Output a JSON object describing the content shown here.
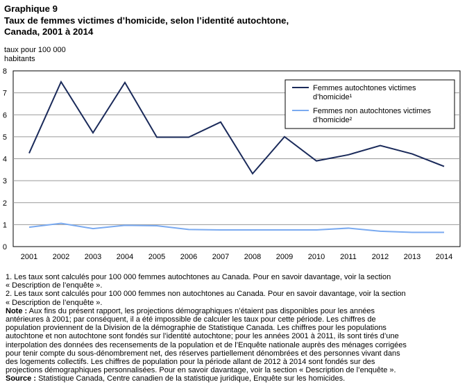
{
  "title": {
    "line1": "Graphique  9",
    "line2": "Taux de femmes victimes d’homicide, selon l’identité  autochtone,",
    "line3": "Canada, 2001 à 2014"
  },
  "y_unit": {
    "line1": "taux pour 100 000",
    "line2": "habitants"
  },
  "chart_data": {
    "type": "line",
    "title": "Taux de femmes victimes d’homicide, selon l’identité  autochtone, Canada, 2001 à 2014",
    "ylabel": "taux pour 100 000 habitants",
    "xlabel": "",
    "x": [
      "2001",
      "2002",
      "2003",
      "2004",
      "2005",
      "2006",
      "2007",
      "2008",
      "2009",
      "2010",
      "2011",
      "2012",
      "2013",
      "2014"
    ],
    "ylim": [
      0,
      8
    ],
    "yticks": [
      0,
      1,
      2,
      3,
      4,
      5,
      6,
      7,
      8
    ],
    "grid": true,
    "legend_position": "top-right",
    "series": [
      {
        "name_lines": [
          "Femmes autochtones victimes",
          "d’homicide¹"
        ],
        "color": "#1a2a5a",
        "values": [
          4.25,
          7.5,
          5.18,
          7.47,
          4.98,
          4.98,
          5.67,
          3.32,
          5.0,
          3.9,
          4.18,
          4.6,
          4.22,
          3.65
        ]
      },
      {
        "name_lines": [
          "Femmes non autochtones victimes",
          "d’homicide²"
        ],
        "color": "#7aaaf0",
        "values": [
          0.88,
          1.06,
          0.82,
          0.97,
          0.95,
          0.78,
          0.76,
          0.76,
          0.76,
          0.76,
          0.84,
          0.7,
          0.65,
          0.65
        ]
      }
    ]
  },
  "notes": {
    "n1_line1": "1. Les taux sont calculés pour 100 000 femmes autochtones au Canada. Pour en savoir davantage, voir la section",
    "n1_line2": "« Description de l’enquête ».",
    "n2_line1": "2. Les taux sont calculés pour 100 000 femmes non autochtones au Canada. Pour en savoir davantage, voir la section",
    "n2_line2": "« Description de l’enquête ».",
    "note_label": "Note :",
    "note_line1": " Aux fins du présent rapport, les projections démographiques n’étaient pas disponibles pour les années",
    "note_line2": "antérieures à 2001; par conséquent, il a été impossible de calculer les taux pour cette période. Les chiffres de",
    "note_line3": "population proviennent de la Division de la démographie de Statistique Canada. Les chiffres pour les populations",
    "note_line4": "autochtone et non autochtone sont fondés sur l’identité autochtone; pour les années 2001 à 2011, ils sont tirés d’une",
    "note_line5": "interpolation des données des recensements de la population et de l’Enquête nationale auprès des ménages corrigées",
    "note_line6": "pour tenir compte du sous-dénombrement net, des réserves partiellement dénombrées et des personnes vivant dans",
    "note_line7": "des logements collectifs. Les chiffres de population pour la période allant de 2012 à 2014 sont fondés sur des",
    "note_line8": "projections démographiques personnalisées. Pour en savoir davantage, voir la section « Description de l’enquête ».",
    "source_label": "Source :",
    "source_text": " Statistique Canada, Centre canadien de la statistique juridique, Enquête sur les homicides."
  }
}
